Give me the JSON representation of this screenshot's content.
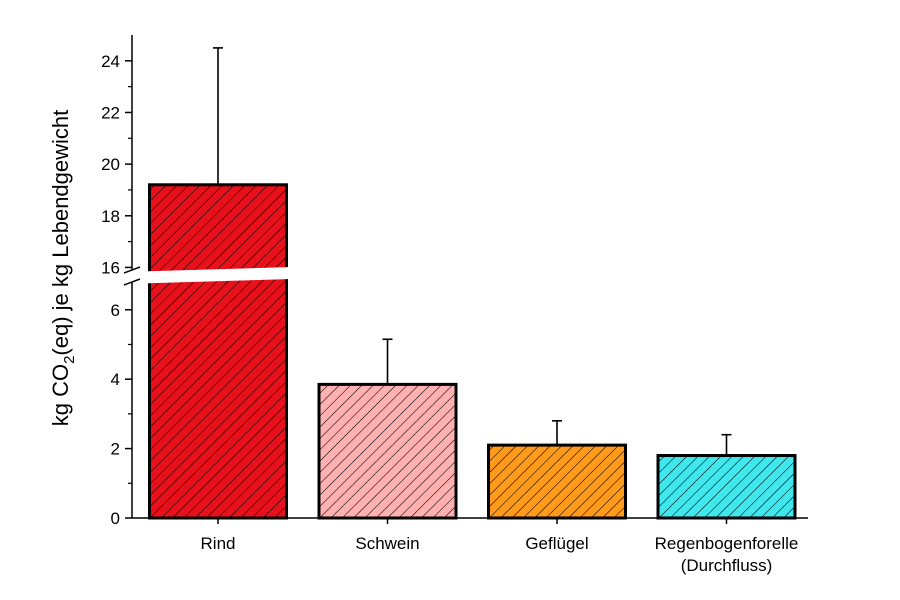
{
  "chart_data": {
    "type": "bar",
    "categories": [
      "Rind",
      "Schwein",
      "Geflügel",
      "Regenbogenforelle (Durchfluss)"
    ],
    "category_lines": [
      [
        "Rind"
      ],
      [
        "Schwein"
      ],
      [
        "Geflügel"
      ],
      [
        "Regenbogenforelle",
        "(Durchfluss)"
      ]
    ],
    "values": [
      19.2,
      3.85,
      2.1,
      1.8
    ],
    "error_upper": [
      24.5,
      5.15,
      2.8,
      2.4
    ],
    "colors": [
      "#e8101a",
      "#ffb0b0",
      "#ff9a1a",
      "#40e8ee"
    ],
    "hatch": "diagonal",
    "ylabel_parts": [
      "kg CO",
      "2",
      "(eq) je kg Lebendgewicht"
    ],
    "axis_break": true,
    "lower_ylim": [
      0,
      6.8
    ],
    "upper_ylim": [
      15.9,
      25
    ],
    "lower_ticks": [
      "0",
      "2",
      "4",
      "6"
    ],
    "upper_ticks": [
      "16",
      "18",
      "20",
      "22",
      "24"
    ],
    "grid": false,
    "legend": "none"
  }
}
